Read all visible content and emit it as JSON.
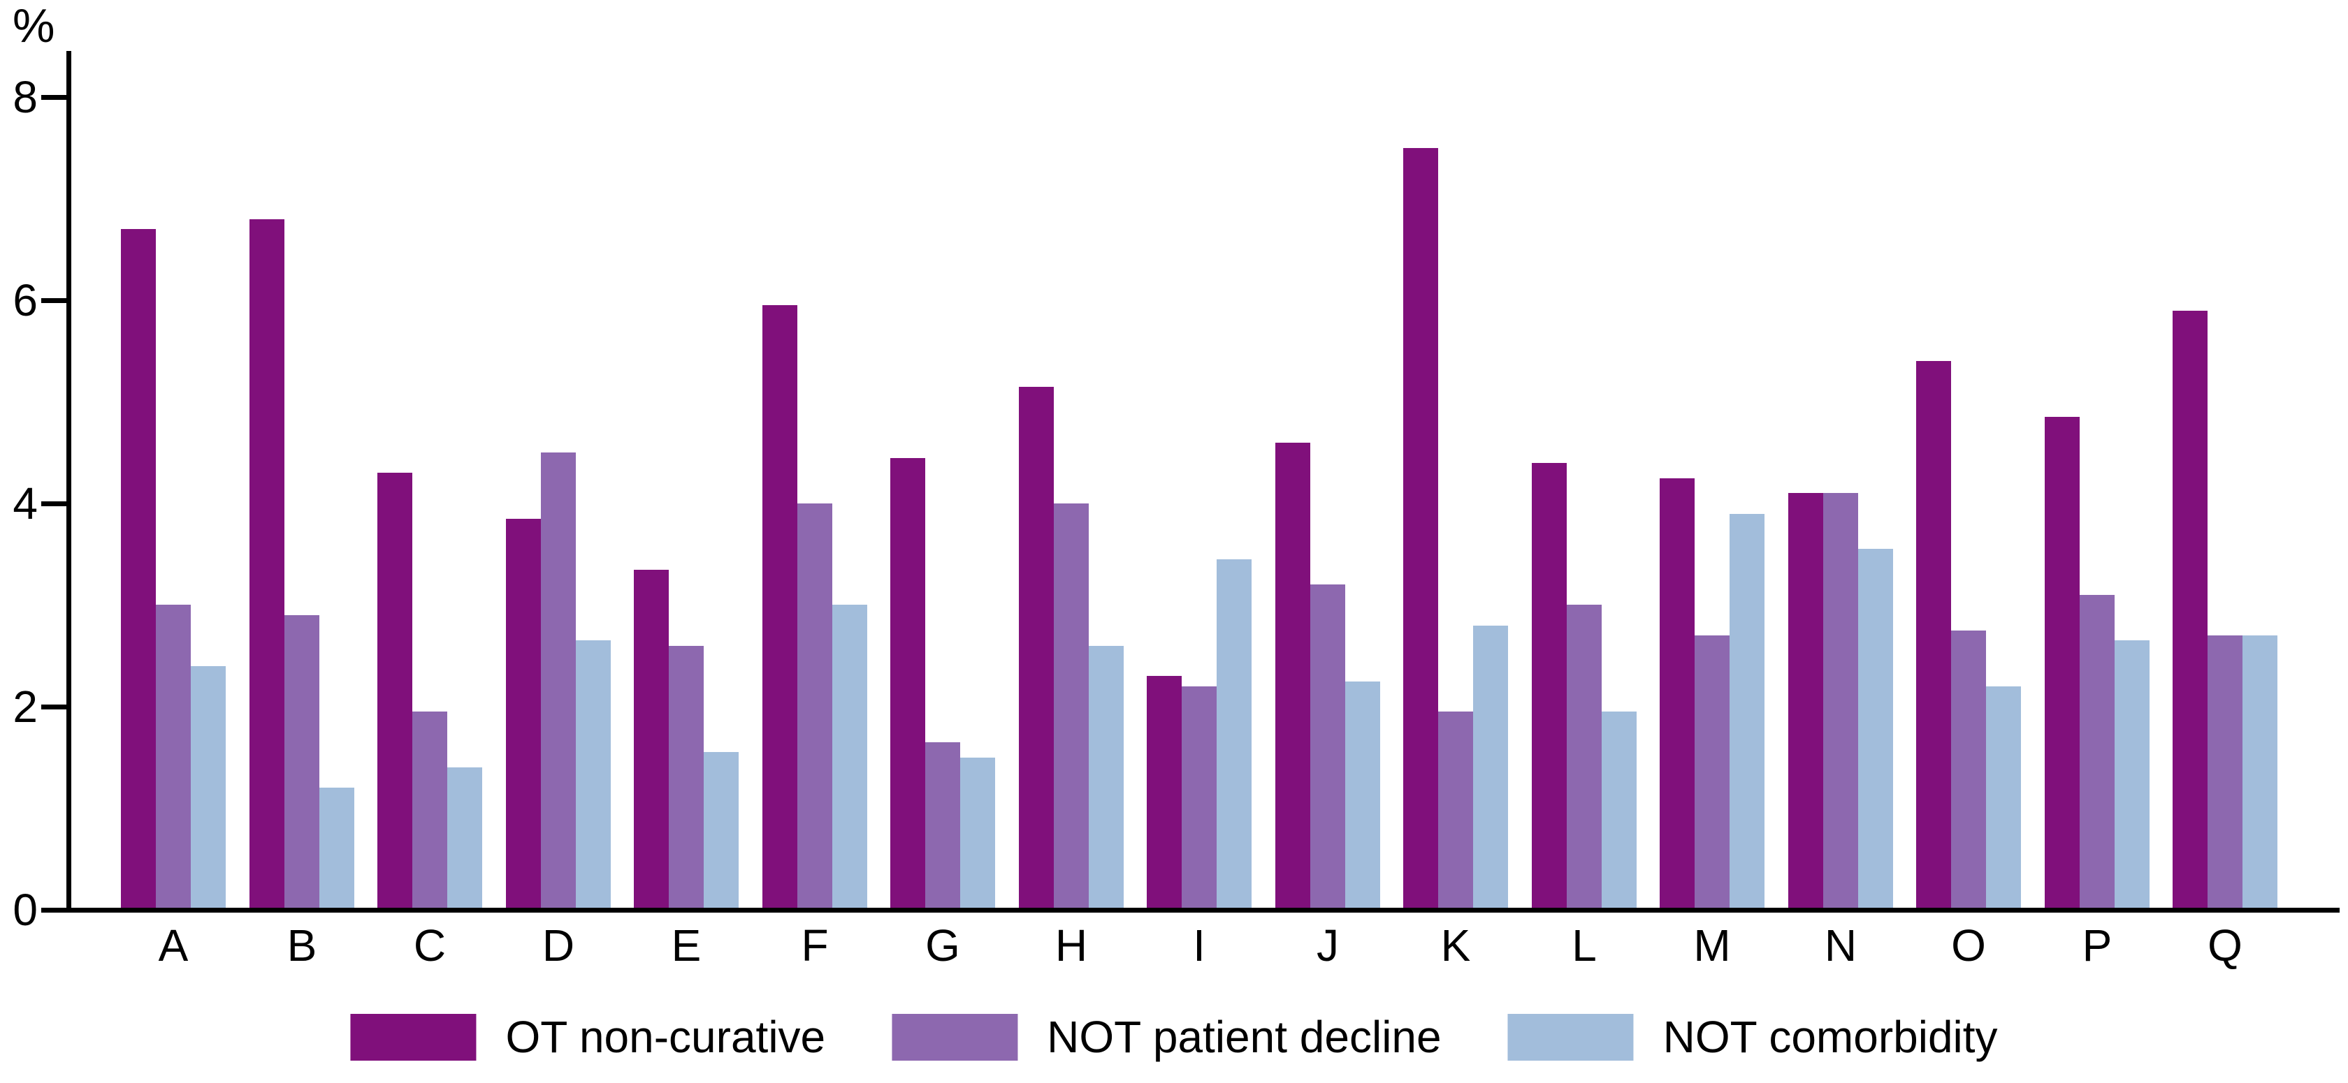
{
  "chart_data": {
    "type": "bar",
    "title": "",
    "ylabel": "%",
    "xlabel": "",
    "categories": [
      "A",
      "B",
      "C",
      "D",
      "E",
      "F",
      "G",
      "H",
      "I",
      "J",
      "K",
      "L",
      "M",
      "N",
      "O",
      "P",
      "Q"
    ],
    "series": [
      {
        "name": "OT non-curative",
        "color": "#80107B",
        "values": [
          6.7,
          6.8,
          4.3,
          3.85,
          3.35,
          5.95,
          4.45,
          5.15,
          2.3,
          4.6,
          7.5,
          4.4,
          4.25,
          4.1,
          5.4,
          4.85,
          5.9
        ]
      },
      {
        "name": "NOT patient decline",
        "color": "#8D68AF",
        "values": [
          3.0,
          2.9,
          1.95,
          4.5,
          2.6,
          4.0,
          1.65,
          4.0,
          2.2,
          3.2,
          1.95,
          3.0,
          2.7,
          4.1,
          2.75,
          3.1,
          2.7
        ]
      },
      {
        "name": "NOT comorbidity",
        "color": "#A2BDDB",
        "values": [
          2.4,
          1.2,
          1.4,
          2.65,
          1.55,
          3.0,
          1.5,
          2.6,
          3.45,
          2.25,
          2.8,
          1.95,
          3.9,
          3.55,
          2.2,
          2.65,
          2.7
        ]
      }
    ],
    "y_axis": {
      "min": 0,
      "max": 8,
      "ticks": [
        0,
        2,
        4,
        6,
        8
      ]
    },
    "legend_position": "bottom-center",
    "grid": false,
    "axis_color": "#000000",
    "background_color": "#FFFFFF"
  }
}
